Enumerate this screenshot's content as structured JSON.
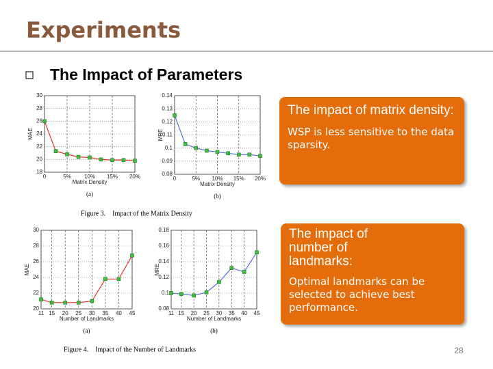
{
  "header": {
    "title": "Experiments"
  },
  "bullet": "The Impact of Parameters",
  "figures": [
    {
      "caption": "Figure 3.    Impact of the Matrix Density",
      "charts": [
        {
          "type": "line",
          "sublabel": "(a)",
          "xlabel": "Matrix Density",
          "ylabel": "MAE",
          "x": [
            0,
            2.5,
            5,
            7.5,
            10,
            12.5,
            15,
            17.5,
            20
          ],
          "values": [
            26,
            21.3,
            20.8,
            20.4,
            20.3,
            20.0,
            19.9,
            19.9,
            19.8
          ],
          "xlim": [
            0,
            20
          ],
          "ylim": [
            18,
            30
          ],
          "xticks": [
            0,
            {
              "value": 5,
              "label": "5%"
            },
            {
              "value": 10,
              "label": "10%"
            },
            {
              "value": 15,
              "label": "15%"
            },
            {
              "value": 20,
              "label": "20%"
            }
          ],
          "yticks": [
            18,
            20,
            22,
            24,
            26,
            28,
            30
          ],
          "line_color": "#e0332b",
          "marker_color": "#3fbf3f",
          "grid": true
        },
        {
          "type": "line",
          "sublabel": "(b)",
          "xlabel": "Matrix Density",
          "ylabel": "MRE",
          "x": [
            0,
            2.5,
            5,
            7.5,
            10,
            12.5,
            15,
            17.5,
            20
          ],
          "values": [
            0.125,
            0.103,
            0.1,
            0.098,
            0.097,
            0.096,
            0.095,
            0.095,
            0.094
          ],
          "xlim": [
            0,
            20
          ],
          "ylim": [
            0.08,
            0.14
          ],
          "xticks": [
            0,
            {
              "value": 5,
              "label": "5%"
            },
            {
              "value": 10,
              "label": "10%"
            },
            {
              "value": 15,
              "label": "15%"
            },
            {
              "value": 20,
              "label": "20%"
            }
          ],
          "yticks": [
            0.08,
            0.09,
            0.1,
            0.11,
            0.12,
            0.13,
            0.14
          ],
          "line_color": "#5a6fd6",
          "marker_color": "#3fbf3f",
          "grid": true
        }
      ]
    },
    {
      "caption": "Figure 4.    Impact of the Number of Landmarks",
      "charts": [
        {
          "type": "line",
          "sublabel": "(a)",
          "xlabel": "Number of Landmarks",
          "ylabel": "MAE",
          "x": [
            11,
            15,
            20,
            25,
            30,
            35,
            40,
            45
          ],
          "values": [
            21.2,
            20.8,
            20.8,
            20.8,
            21.0,
            23.8,
            23.8,
            26.8
          ],
          "xlim": [
            11,
            45
          ],
          "ylim": [
            20,
            30
          ],
          "xticks": [
            11,
            15,
            20,
            25,
            30,
            35,
            40,
            45
          ],
          "yticks": [
            20,
            22,
            24,
            26,
            28,
            30
          ],
          "line_color": "#e0332b",
          "marker_color": "#3fbf3f",
          "grid": true
        },
        {
          "type": "line",
          "sublabel": "(b)",
          "xlabel": "Number of Landmarks",
          "ylabel": "MRE",
          "x": [
            11,
            15,
            20,
            25,
            30,
            35,
            40,
            45
          ],
          "values": [
            0.1,
            0.099,
            0.097,
            0.101,
            0.114,
            0.132,
            0.127,
            0.152
          ],
          "xlim": [
            11,
            45
          ],
          "ylim": [
            0.08,
            0.18
          ],
          "xticks": [
            11,
            15,
            20,
            25,
            30,
            35,
            40,
            45
          ],
          "yticks": [
            0.08,
            0.1,
            0.12,
            0.14,
            0.16,
            0.18
          ],
          "line_color": "#5a6fd6",
          "marker_color": "#3fbf3f",
          "grid": true
        }
      ]
    }
  ],
  "callouts": [
    {
      "heading": "The impact of matrix density:",
      "body": "WSP is less sensitive to the data sparsity."
    },
    {
      "heading": "The impact of number of landmarks:",
      "body": "Optimal landmarks can be selected to achieve best performance."
    }
  ],
  "page_number": "28"
}
